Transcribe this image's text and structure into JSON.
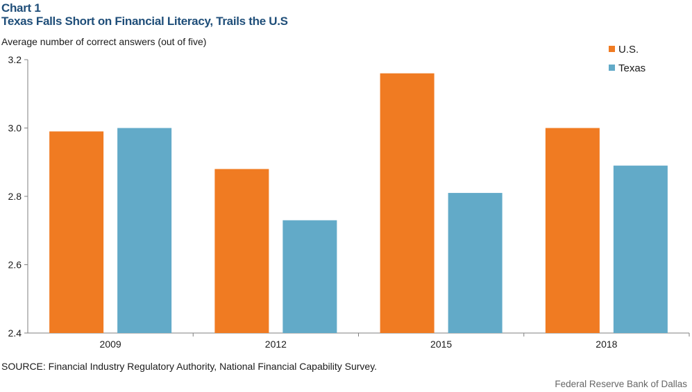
{
  "header": {
    "chart_label": "Chart 1",
    "title": "Texas Falls Short on Financial Literacy, Trails the U.S"
  },
  "footer": {
    "source": "SOURCE: Financial Industry Regulatory Authority, National Financial Capability Survey.",
    "credit": "Federal Reserve Bank of Dallas"
  },
  "chart_data": {
    "type": "bar",
    "title": "Texas Falls Short on Financial Literacy, Trails the U.S",
    "ylabel": "Average number of correct answers (out of five)",
    "xlabel": "",
    "categories": [
      "2009",
      "2012",
      "2015",
      "2018"
    ],
    "series": [
      {
        "name": "U.S.",
        "color": "#f07b22",
        "values": [
          2.99,
          2.88,
          3.16,
          3.0
        ]
      },
      {
        "name": "Texas",
        "color": "#62aac8",
        "values": [
          3.0,
          2.73,
          2.81,
          2.89
        ]
      }
    ],
    "ylim": [
      2.4,
      3.2
    ],
    "yticks": [
      "2.4",
      "2.6",
      "2.8",
      "3.0",
      "3.2"
    ],
    "grid": false,
    "legend_position": "top-right"
  }
}
